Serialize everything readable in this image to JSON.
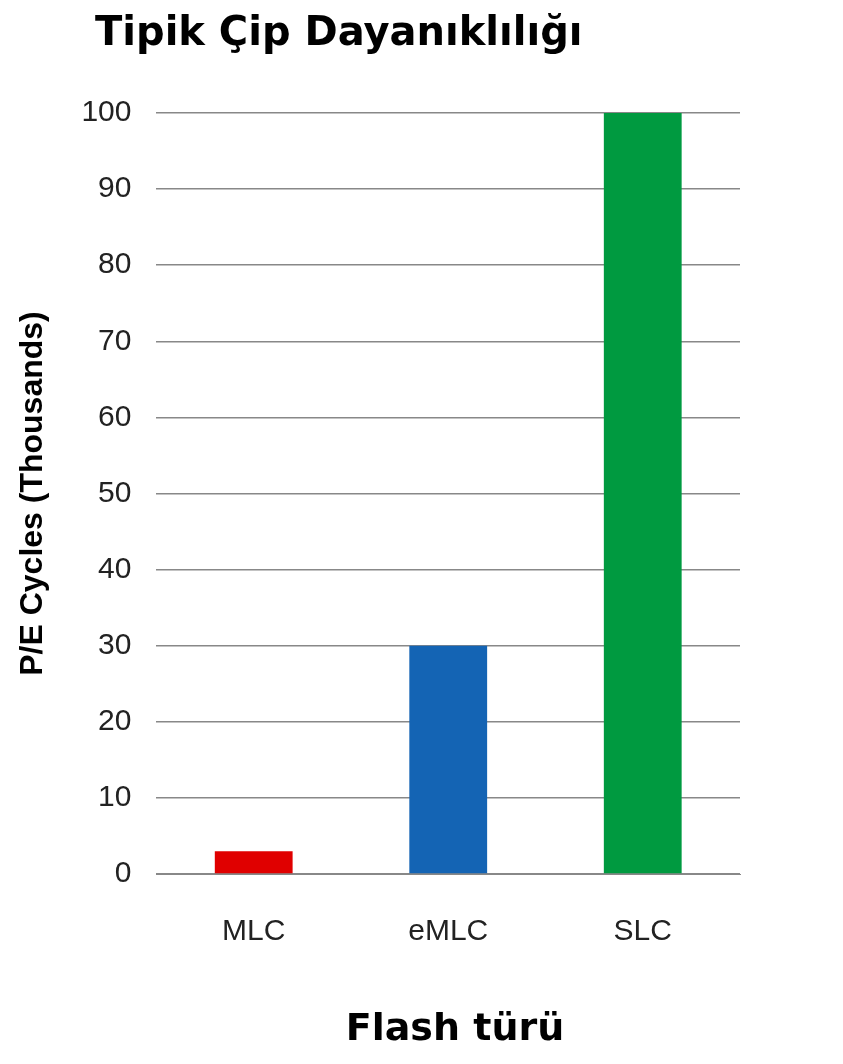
{
  "chart_data": {
    "type": "bar",
    "title": "Tipik Çip Dayanıklılığı",
    "xlabel": "Flash türü",
    "ylabel": "P/E Cycles (Thousands)",
    "categories": [
      "MLC",
      "eMLC",
      "SLC"
    ],
    "values": [
      3,
      30,
      100
    ],
    "colors": [
      "#e00000",
      "#1464b4",
      "#009a40"
    ],
    "ylim": [
      0,
      100
    ],
    "yticks": [
      0,
      10,
      20,
      30,
      40,
      50,
      60,
      70,
      80,
      90,
      100
    ],
    "grid": "y"
  }
}
